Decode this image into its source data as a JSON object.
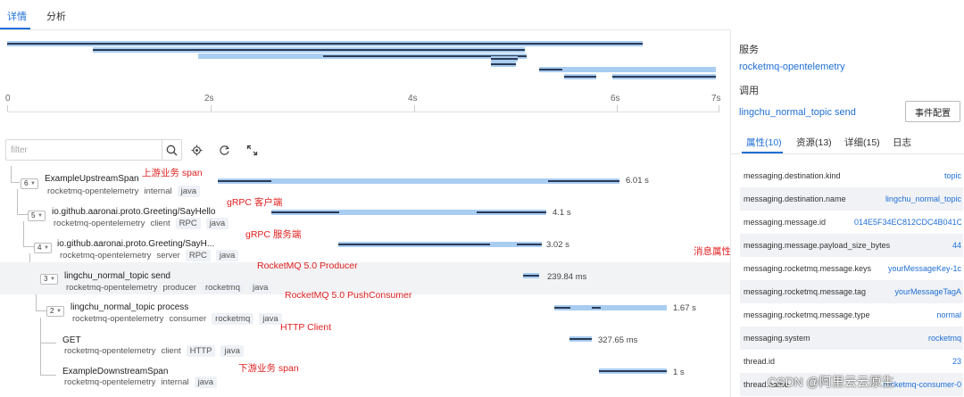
{
  "tabs": [
    {
      "label": "详情",
      "active": true
    },
    {
      "label": "分析",
      "active": false
    }
  ],
  "timeline": {
    "ticks": [
      "0",
      "2s",
      "4s",
      "6s",
      "7s"
    ]
  },
  "filter": {
    "placeholder": "filter"
  },
  "spans": [
    {
      "count": "6",
      "name": "ExampleUpstreamSpan",
      "service": "rocketmq-opentelemetry",
      "kind": "internal",
      "tags": [
        "java"
      ],
      "duration": "6.01 s",
      "annotation": "上游业务 span"
    },
    {
      "count": "5",
      "name": "io.github.aaronai.proto.Greeting/SayHello",
      "service": "rocketmq-opentelemetry",
      "kind": "client",
      "tags": [
        "RPC",
        "java"
      ],
      "duration": "4.1 s",
      "annotation": "gRPC 客户端"
    },
    {
      "count": "4",
      "name": "io.github.aaronai.proto.Greeting/SayH...",
      "service": "rocketmq-opentelemetry",
      "kind": "server",
      "tags": [
        "RPC",
        "java"
      ],
      "duration": "3.02 s",
      "annotation": "gRPC 服务端"
    },
    {
      "count": "3",
      "name": "lingchu_normal_topic send",
      "service": "rocketmq-opentelemetry",
      "kind": "producer",
      "tags": [
        "rocketmq",
        "java"
      ],
      "duration": "239.84 ms",
      "annotation": "RocketMQ 5.0 Producer"
    },
    {
      "count": "2",
      "name": "lingchu_normal_topic process",
      "service": "rocketmq-opentelemetry",
      "kind": "consumer",
      "tags": [
        "rocketmq",
        "java"
      ],
      "duration": "1.67 s",
      "annotation": "RocketMQ 5.0 PushConsumer"
    },
    {
      "count": "",
      "name": "GET",
      "service": "rocketmq-opentelemetry",
      "kind": "client",
      "tags": [
        "HTTP",
        "java"
      ],
      "duration": "327.65 ms",
      "annotation": "HTTP Client"
    },
    {
      "count": "",
      "name": "ExampleDownstreamSpan",
      "service": "rocketmq-opentelemetry",
      "kind": "internal",
      "tags": [
        "java"
      ],
      "duration": "1 s",
      "annotation": "下游业务 span"
    }
  ],
  "side_annotation": "消息属性",
  "panel": {
    "service_label": "服务",
    "service_value": "rocketmq-opentelemetry",
    "call_label": "调用",
    "call_value": "lingchu_normal_topic send",
    "event_button": "事件配置",
    "tabs": [
      {
        "label": "属性(10)",
        "active": true
      },
      {
        "label": "资源(13)",
        "active": false
      },
      {
        "label": "详细(15)",
        "active": false
      },
      {
        "label": "日志",
        "active": false
      }
    ],
    "attributes": [
      {
        "key": "messaging.destination.kind",
        "value": "topic"
      },
      {
        "key": "messaging.destination.name",
        "value": "lingchu_normal_topic"
      },
      {
        "key": "messaging.message.id",
        "value": "014E5F34EC812CDC4B041C65C"
      },
      {
        "key": "messaging.message.payload_size_bytes",
        "value": "44"
      },
      {
        "key": "messaging.rocketmq.message.keys",
        "value": "yourMessageKey-1c"
      },
      {
        "key": "messaging.rocketmq.message.tag",
        "value": "yourMessageTagA"
      },
      {
        "key": "messaging.rocketmq.message.type",
        "value": "normal"
      },
      {
        "key": "messaging.system",
        "value": "rocketmq"
      },
      {
        "key": "thread.id",
        "value": "23"
      },
      {
        "key": "thread.name",
        "value": "rocketmq-consumer-0"
      }
    ]
  },
  "watermark": "CSDN @阿里云云原生"
}
